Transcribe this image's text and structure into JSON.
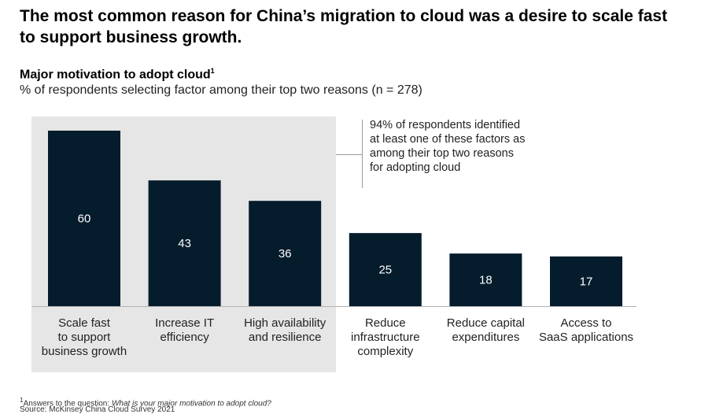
{
  "headline": "The most common reason for China’s migration to cloud was a desire to scale fast to support business growth.",
  "chart_title": "Major motivation to adopt cloud",
  "chart_title_sup": "1",
  "chart_subtitle": "% of respondents selecting factor among their top two reasons (n = 278)",
  "annotation": "94% of respondents identified at least one of these factors as among their top two reasons for adopting cloud",
  "footnote": {
    "marker": "1",
    "prefix": "Answers to the question: ",
    "question": "What is your major motivation to adopt cloud?"
  },
  "source": "Source: McKinsey China Cloud Survey 2021",
  "colors": {
    "bar": "#051c2c",
    "highlight": "#e6e6e6",
    "axis": "#b3b3b3"
  },
  "chart_data": {
    "type": "bar",
    "categories": [
      "Scale fast to support business growth",
      "Increase IT efficiency",
      "High availability and resilience",
      "Reduce infrastructure complexity",
      "Reduce capital expenditures",
      "Access to SaaS applications"
    ],
    "category_lines": [
      [
        "Scale fast",
        "to support",
        "business growth"
      ],
      [
        "Increase IT",
        "efficiency"
      ],
      [
        "High availability",
        "and resilience"
      ],
      [
        "Reduce",
        "infrastructure",
        "complexity"
      ],
      [
        "Reduce capital",
        "expenditures"
      ],
      [
        "Access to",
        "SaaS applications"
      ]
    ],
    "values": [
      60,
      43,
      36,
      25,
      18,
      17
    ],
    "highlighted_count": 3,
    "ylim": [
      0,
      60
    ],
    "grid": false,
    "title": "Major motivation to adopt cloud",
    "ylabel": ""
  }
}
